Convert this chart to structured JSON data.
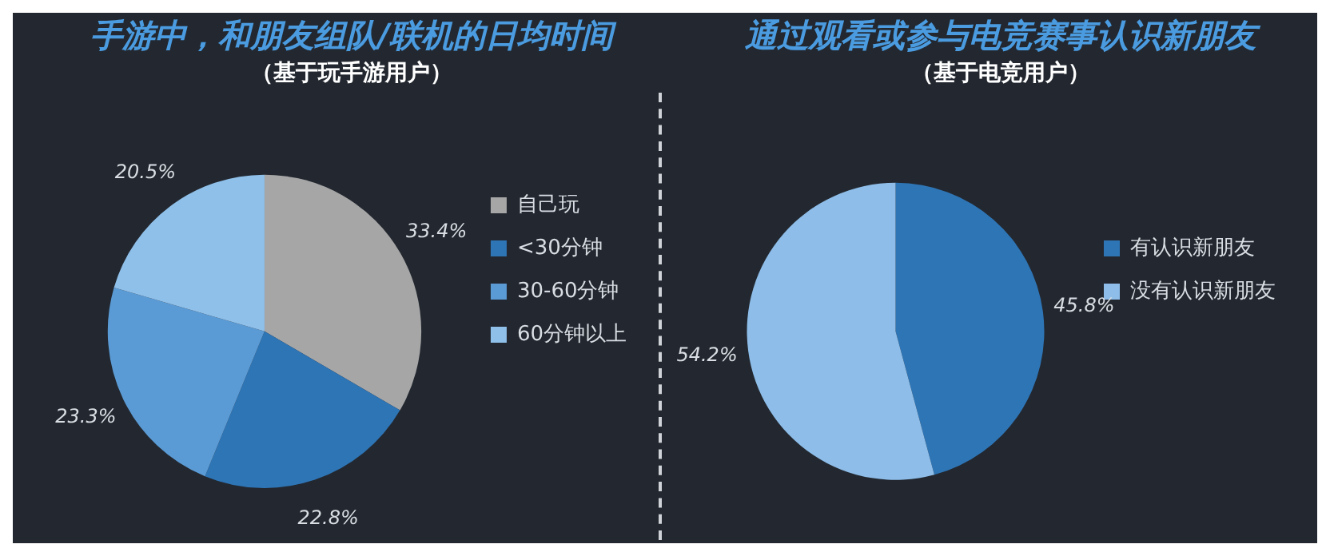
{
  "chart_data": [
    {
      "type": "pie",
      "title": "手游中，和朋友组队/联机的日均时间",
      "subtitle": "（基于玩手游用户）",
      "categories": [
        "自己玩",
        "<30分钟",
        "30-60分钟",
        "60分钟以上"
      ],
      "values": [
        33.4,
        22.8,
        23.3,
        20.5
      ],
      "value_labels": [
        "33.4%",
        "22.8%",
        "23.3%",
        "20.5%"
      ],
      "colors": [
        "#a6a6a6",
        "#2e75b6",
        "#5b9bd5",
        "#8fc0ea"
      ],
      "legend": "right"
    },
    {
      "type": "pie",
      "title": "通过观看或参与电竞赛事认识新朋友",
      "subtitle": "（基于电竞用户）",
      "categories": [
        "有认识新朋友",
        "没有认识新朋友"
      ],
      "values": [
        45.8,
        54.2
      ],
      "value_labels": [
        "45.8%",
        "54.2%"
      ],
      "colors": [
        "#2e75b6",
        "#8dbde8"
      ],
      "legend": "right"
    }
  ]
}
